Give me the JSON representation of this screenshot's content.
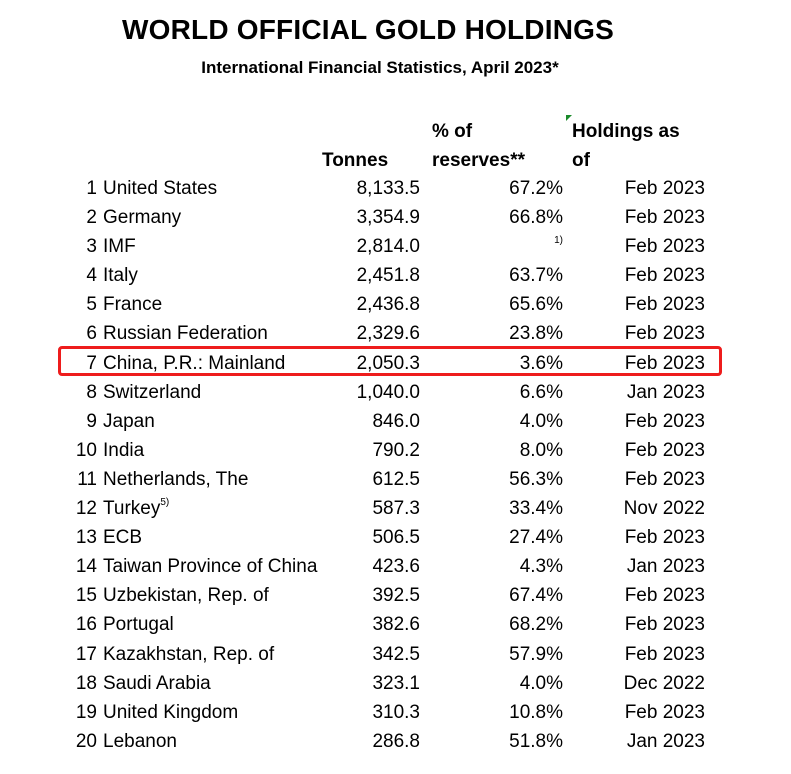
{
  "title": "WORLD OFFICIAL GOLD HOLDINGS",
  "subtitle": "International Financial Statistics, April 2023*",
  "headers": {
    "tonnes": "Tonnes",
    "pct_line1": "% of",
    "pct_line2": "reserves**",
    "holdings_line1": "Holdings as",
    "holdings_line2": "of"
  },
  "highlight_color": "#ee1c1c",
  "rows": [
    {
      "rank": "1",
      "name": "United States",
      "tonnes": "8,133.5",
      "pct": "67.2%",
      "date": "Feb 2023"
    },
    {
      "rank": "2",
      "name": "Germany",
      "tonnes": "3,354.9",
      "pct": "66.8%",
      "date": "Feb 2023"
    },
    {
      "rank": "3",
      "name": "IMF",
      "tonnes": "2,814.0",
      "pct": "",
      "pct_note": "1)",
      "date": "Feb 2023"
    },
    {
      "rank": "4",
      "name": "Italy",
      "tonnes": "2,451.8",
      "pct": "63.7%",
      "date": "Feb 2023"
    },
    {
      "rank": "5",
      "name": "France",
      "tonnes": "2,436.8",
      "pct": "65.6%",
      "date": "Feb 2023"
    },
    {
      "rank": "6",
      "name": "Russian Federation",
      "tonnes": "2,329.6",
      "pct": "23.8%",
      "date": "Feb 2023"
    },
    {
      "rank": "7",
      "name": "China, P.R.: Mainland",
      "tonnes": "2,050.3",
      "pct": "3.6%",
      "date": "Feb 2023",
      "highlighted": true
    },
    {
      "rank": "8",
      "name": "Switzerland",
      "tonnes": "1,040.0",
      "pct": "6.6%",
      "date": "Jan 2023"
    },
    {
      "rank": "9",
      "name": "Japan",
      "tonnes": "846.0",
      "pct": "4.0%",
      "date": "Feb 2023"
    },
    {
      "rank": "10",
      "name": "India",
      "tonnes": "790.2",
      "pct": "8.0%",
      "date": "Feb 2023"
    },
    {
      "rank": "11",
      "name": "Netherlands, The",
      "tonnes": "612.5",
      "pct": "56.3%",
      "date": "Feb 2023"
    },
    {
      "rank": "12",
      "name": "Turkey",
      "name_note": "5)",
      "tonnes": "587.3",
      "pct": "33.4%",
      "date": "Nov 2022"
    },
    {
      "rank": "13",
      "name": "ECB",
      "tonnes": "506.5",
      "pct": "27.4%",
      "date": "Feb 2023"
    },
    {
      "rank": "14",
      "name": "Taiwan Province of China",
      "tonnes": "423.6",
      "pct": "4.3%",
      "date": "Jan 2023"
    },
    {
      "rank": "15",
      "name": "Uzbekistan, Rep. of",
      "tonnes": "392.5",
      "pct": "67.4%",
      "date": "Feb 2023"
    },
    {
      "rank": "16",
      "name": "Portugal",
      "tonnes": "382.6",
      "pct": "68.2%",
      "date": "Feb 2023"
    },
    {
      "rank": "17",
      "name": "Kazakhstan, Rep. of",
      "tonnes": "342.5",
      "pct": "57.9%",
      "date": "Feb 2023"
    },
    {
      "rank": "18",
      "name": "Saudi Arabia",
      "tonnes": "323.1",
      "pct": "4.0%",
      "date": "Dec 2022"
    },
    {
      "rank": "19",
      "name": "United Kingdom",
      "tonnes": "310.3",
      "pct": "10.8%",
      "date": "Feb 2023"
    },
    {
      "rank": "20",
      "name": "Lebanon",
      "tonnes": "286.8",
      "pct": "51.8%",
      "date": "Jan 2023"
    }
  ]
}
